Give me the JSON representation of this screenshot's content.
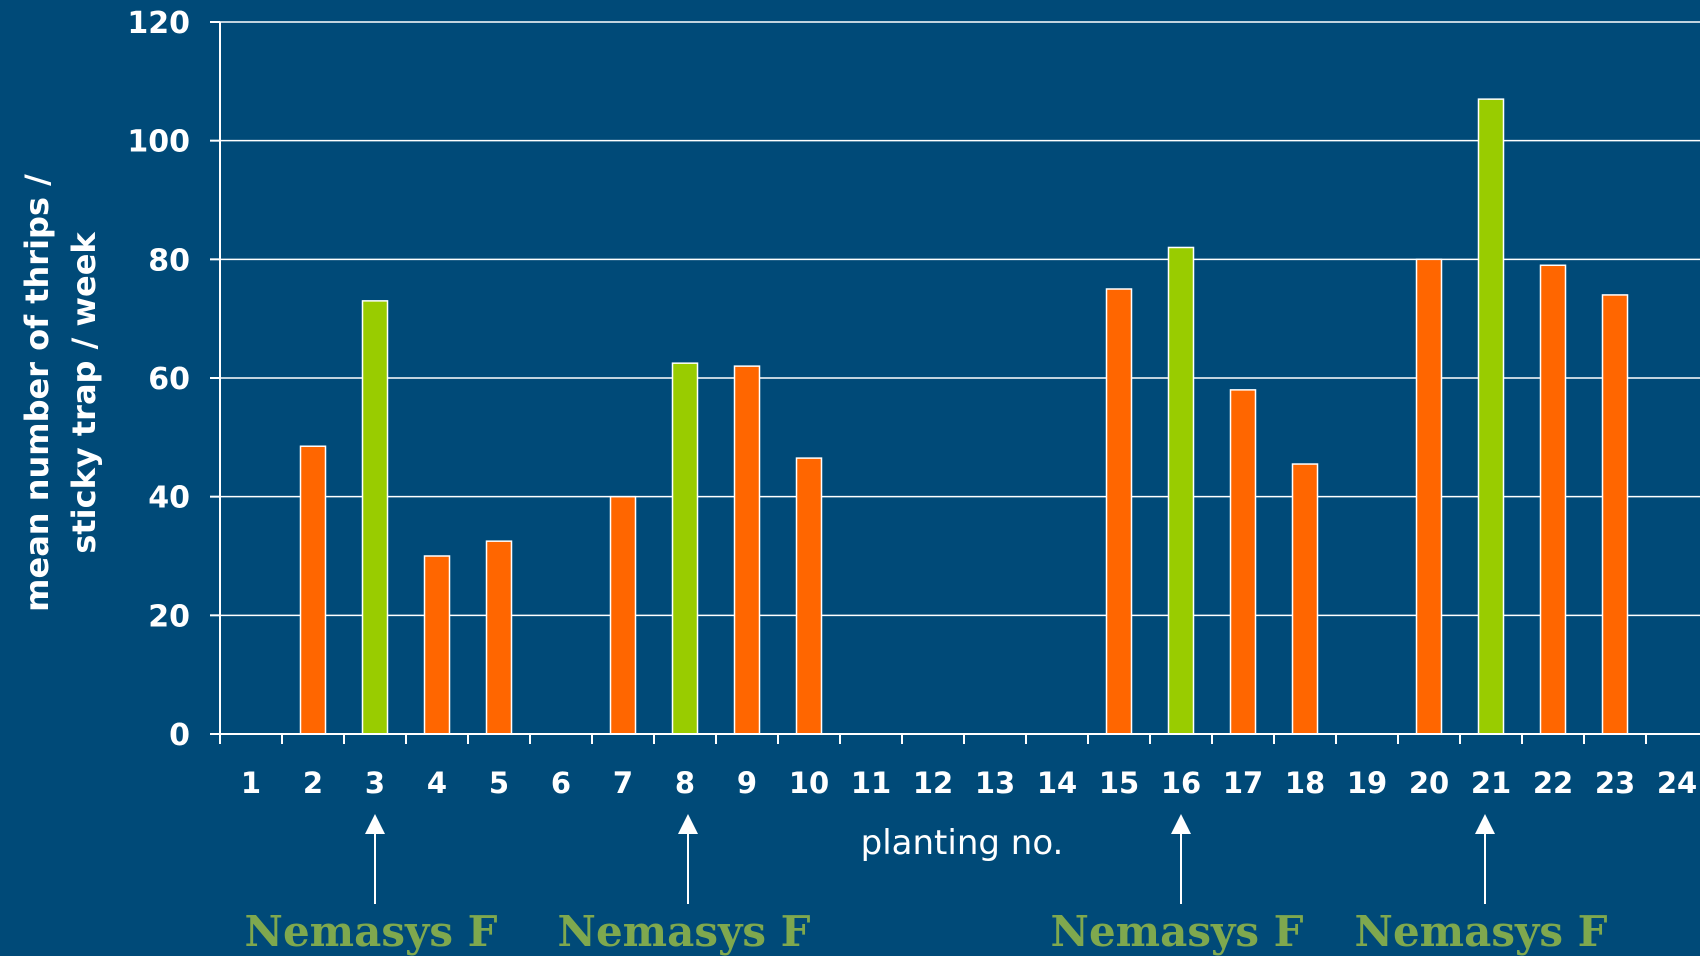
{
  "chart_data": {
    "type": "bar",
    "categories": [
      "1",
      "2",
      "3",
      "4",
      "5",
      "6",
      "7",
      "8",
      "9",
      "10",
      "11",
      "12",
      "13",
      "14",
      "15",
      "16",
      "17",
      "18",
      "19",
      "20",
      "21",
      "22",
      "23",
      "24"
    ],
    "values": [
      null,
      48.5,
      73,
      30,
      32.5,
      null,
      40,
      62.5,
      62,
      46.5,
      null,
      null,
      null,
      null,
      75,
      82,
      58,
      45.5,
      null,
      80,
      107,
      79,
      74,
      null
    ],
    "bar_colors": [
      "#ff6600",
      "#ff6600",
      "#99cc00",
      "#ff6600",
      "#ff6600",
      "#ff6600",
      "#ff6600",
      "#99cc00",
      "#ff6600",
      "#ff6600",
      "#ff6600",
      "#ff6600",
      "#ff6600",
      "#ff6600",
      "#ff6600",
      "#99cc00",
      "#ff6600",
      "#ff6600",
      "#ff6600",
      "#ff6600",
      "#99cc00",
      "#ff6600",
      "#ff6600",
      "#ff6600"
    ],
    "title": "",
    "xlabel": "planting no.",
    "ylabel_lines": [
      "mean number of thrips /",
      "sticky trap / week"
    ],
    "ylim": [
      0,
      120
    ],
    "yticks": [
      0,
      20,
      40,
      60,
      80,
      100,
      120
    ],
    "grid": true,
    "annotations": [
      {
        "category": "3",
        "text": "Nemasys F"
      },
      {
        "category": "8",
        "text": "Nemasys F"
      },
      {
        "category": "16",
        "text": "Nemasys F"
      },
      {
        "category": "21",
        "text": "Nemasys F"
      }
    ]
  },
  "colors": {
    "background": "#004a78",
    "orange": "#ff6600",
    "green": "#99cc00",
    "annotation": "#7fa84e"
  }
}
